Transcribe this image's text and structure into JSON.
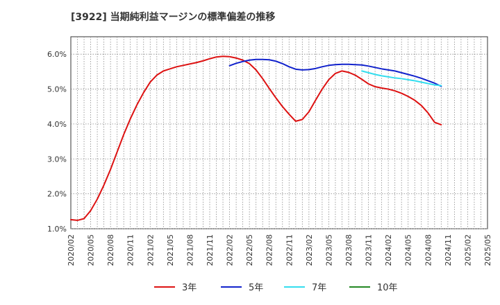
{
  "chart_data": {
    "type": "line",
    "title": "[3922]  当期純利益マージンの標準偏差の推移",
    "xlabel": "",
    "ylabel": "",
    "ylim": [
      1.0,
      6.5
    ],
    "y_ticks": [
      "1.0%",
      "2.0%",
      "3.0%",
      "4.0%",
      "5.0%",
      "6.0%"
    ],
    "y_tick_values": [
      1.0,
      2.0,
      3.0,
      4.0,
      5.0,
      6.0
    ],
    "x_ticks": [
      "2020/02",
      "2020/05",
      "2020/08",
      "2020/11",
      "2021/02",
      "2021/05",
      "2021/08",
      "2021/11",
      "2022/02",
      "2022/05",
      "2022/08",
      "2022/11",
      "2023/02",
      "2023/05",
      "2023/08",
      "2023/11",
      "2024/02",
      "2024/05",
      "2024/08",
      "2024/11",
      "2025/02",
      "2025/05"
    ],
    "x_range_months": [
      0,
      63
    ],
    "grid": true,
    "legend_position": "bottom",
    "series": [
      {
        "name": "3年",
        "color": "#dd1111",
        "points": [
          [
            0,
            1.26
          ],
          [
            1,
            1.24
          ],
          [
            2,
            1.29
          ],
          [
            3,
            1.52
          ],
          [
            4,
            1.85
          ],
          [
            5,
            2.25
          ],
          [
            6,
            2.7
          ],
          [
            7,
            3.2
          ],
          [
            8,
            3.7
          ],
          [
            9,
            4.15
          ],
          [
            10,
            4.55
          ],
          [
            11,
            4.9
          ],
          [
            12,
            5.2
          ],
          [
            13,
            5.4
          ],
          [
            14,
            5.52
          ],
          [
            15,
            5.58
          ],
          [
            16,
            5.64
          ],
          [
            17,
            5.68
          ],
          [
            18,
            5.72
          ],
          [
            19,
            5.76
          ],
          [
            20,
            5.81
          ],
          [
            21,
            5.87
          ],
          [
            22,
            5.92
          ],
          [
            23,
            5.94
          ],
          [
            24,
            5.93
          ],
          [
            25,
            5.89
          ],
          [
            26,
            5.83
          ],
          [
            27,
            5.73
          ],
          [
            28,
            5.55
          ],
          [
            29,
            5.3
          ],
          [
            30,
            5.02
          ],
          [
            31,
            4.75
          ],
          [
            32,
            4.5
          ],
          [
            33,
            4.28
          ],
          [
            34,
            4.08
          ],
          [
            35,
            4.13
          ],
          [
            36,
            4.35
          ],
          [
            37,
            4.68
          ],
          [
            38,
            5.0
          ],
          [
            39,
            5.27
          ],
          [
            40,
            5.45
          ],
          [
            41,
            5.52
          ],
          [
            42,
            5.48
          ],
          [
            43,
            5.4
          ],
          [
            44,
            5.28
          ],
          [
            45,
            5.15
          ],
          [
            46,
            5.07
          ],
          [
            47,
            5.03
          ],
          [
            48,
            5.0
          ],
          [
            49,
            4.95
          ],
          [
            50,
            4.88
          ],
          [
            51,
            4.79
          ],
          [
            52,
            4.68
          ],
          [
            53,
            4.53
          ],
          [
            54,
            4.32
          ],
          [
            55,
            4.05
          ],
          [
            56,
            3.98
          ]
        ]
      },
      {
        "name": "5年",
        "color": "#1122cc",
        "points": [
          [
            24,
            5.67
          ],
          [
            25,
            5.74
          ],
          [
            26,
            5.79
          ],
          [
            27,
            5.83
          ],
          [
            28,
            5.85
          ],
          [
            29,
            5.85
          ],
          [
            30,
            5.84
          ],
          [
            31,
            5.8
          ],
          [
            32,
            5.73
          ],
          [
            33,
            5.64
          ],
          [
            34,
            5.57
          ],
          [
            35,
            5.55
          ],
          [
            36,
            5.56
          ],
          [
            37,
            5.59
          ],
          [
            38,
            5.64
          ],
          [
            39,
            5.68
          ],
          [
            40,
            5.7
          ],
          [
            41,
            5.71
          ],
          [
            42,
            5.71
          ],
          [
            43,
            5.7
          ],
          [
            44,
            5.69
          ],
          [
            45,
            5.66
          ],
          [
            46,
            5.62
          ],
          [
            47,
            5.58
          ],
          [
            48,
            5.55
          ],
          [
            49,
            5.52
          ],
          [
            50,
            5.47
          ],
          [
            51,
            5.42
          ],
          [
            52,
            5.37
          ],
          [
            53,
            5.31
          ],
          [
            54,
            5.24
          ],
          [
            55,
            5.17
          ],
          [
            56,
            5.08
          ]
        ]
      },
      {
        "name": "7年",
        "color": "#33ddee",
        "points": [
          [
            44,
            5.52
          ],
          [
            45,
            5.47
          ],
          [
            46,
            5.42
          ],
          [
            47,
            5.38
          ],
          [
            48,
            5.35
          ],
          [
            49,
            5.32
          ],
          [
            50,
            5.3
          ],
          [
            51,
            5.27
          ],
          [
            52,
            5.24
          ],
          [
            53,
            5.2
          ],
          [
            54,
            5.16
          ],
          [
            55,
            5.12
          ],
          [
            56,
            5.1
          ]
        ]
      },
      {
        "name": "10年",
        "color": "#228822",
        "points": []
      }
    ]
  }
}
